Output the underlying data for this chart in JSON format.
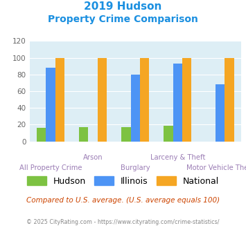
{
  "title_line1": "2019 Hudson",
  "title_line2": "Property Crime Comparison",
  "hudson": [
    16,
    17,
    17,
    19,
    0
  ],
  "illinois": [
    88,
    0,
    80,
    93,
    68
  ],
  "national": [
    100,
    100,
    100,
    100,
    100
  ],
  "hudson_color": "#7dc242",
  "illinois_color": "#4d94f5",
  "national_color": "#f5a623",
  "ylim": [
    0,
    120
  ],
  "yticks": [
    0,
    20,
    40,
    60,
    80,
    100,
    120
  ],
  "xlabel_top": [
    "",
    "Arson",
    "",
    "Larceny & Theft",
    ""
  ],
  "xlabel_bottom": [
    "All Property Crime",
    "",
    "Burglary",
    "",
    "Motor Vehicle Theft"
  ],
  "bg_color": "#ddeef5",
  "title_color": "#1a8fe0",
  "xlabel_color": "#9b7db5",
  "legend_labels": [
    "Hudson",
    "Illinois",
    "National"
  ],
  "footnote1": "Compared to U.S. average. (U.S. average equals 100)",
  "footnote2": "© 2025 CityRating.com - https://www.cityrating.com/crime-statistics/",
  "footnote1_color": "#cc4400",
  "footnote2_color": "#888888",
  "ytick_color": "#666666"
}
